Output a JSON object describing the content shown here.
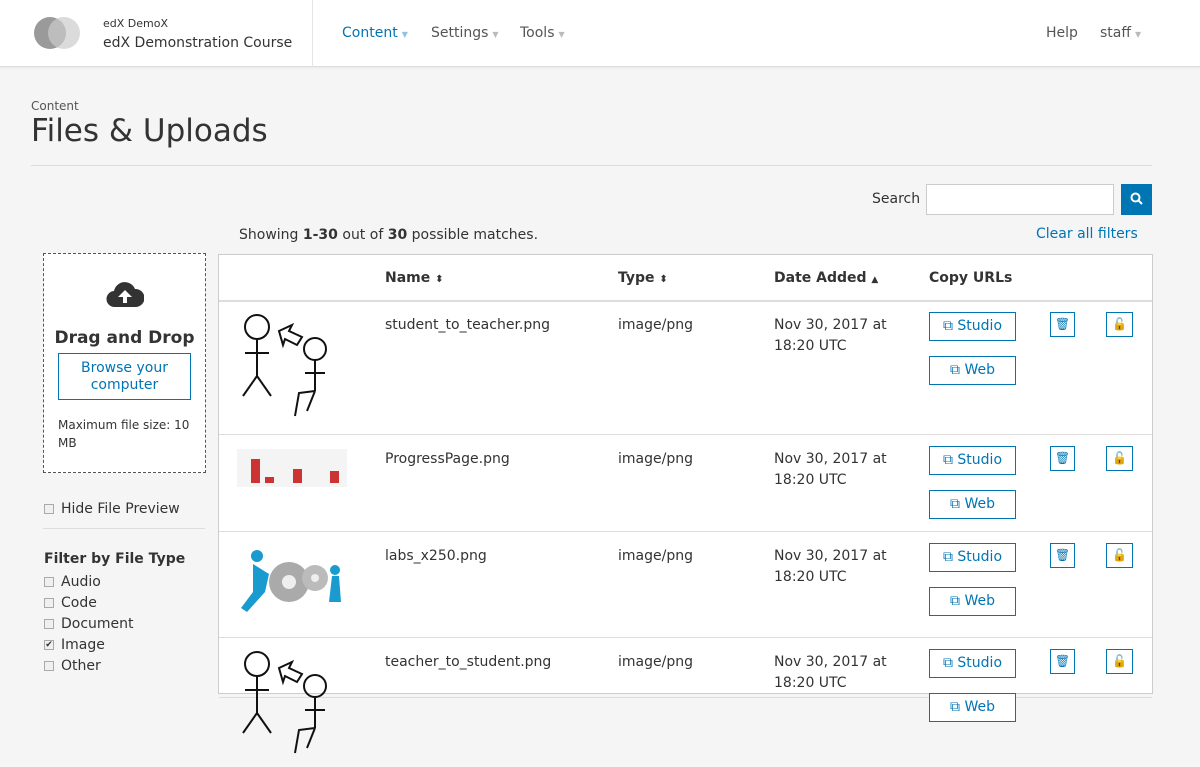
{
  "header": {
    "org": "edX DemoX",
    "course": "edX Demonstration Course",
    "nav": [
      {
        "label": "Content",
        "active": true
      },
      {
        "label": "Settings"
      },
      {
        "label": "Tools"
      }
    ],
    "help": "Help",
    "user": "staff"
  },
  "page": {
    "breadcrumb": "Content",
    "title": "Files & Uploads"
  },
  "search": {
    "label": "Search",
    "value": "",
    "placeholder": ""
  },
  "results": {
    "prefix": "Showing ",
    "range": "1-30",
    "middle": " out of ",
    "total": "30",
    "suffix": " possible matches.",
    "clear": "Clear all filters"
  },
  "upload": {
    "heading": "Drag and Drop",
    "browse": "Browse your computer",
    "max": "Maximum file size: 10 MB"
  },
  "hide_preview": {
    "label": "Hide File Preview",
    "checked": false
  },
  "filter": {
    "title": "Filter by File Type",
    "types": [
      {
        "label": "Audio",
        "checked": false
      },
      {
        "label": "Code",
        "checked": false
      },
      {
        "label": "Document",
        "checked": false
      },
      {
        "label": "Image",
        "checked": true
      },
      {
        "label": "Other",
        "checked": false
      }
    ]
  },
  "table": {
    "headers": {
      "name": "Name",
      "type": "Type",
      "date": "Date Added",
      "copy": "Copy URLs"
    },
    "studio": "Studio",
    "web": "Web",
    "rows": [
      {
        "name": "student_to_teacher.png",
        "type": "image/png",
        "date1": "Nov 30, 2017 at",
        "date2": "18:20 UTC",
        "thumb": "stick-figures"
      },
      {
        "name": "ProgressPage.png",
        "type": "image/png",
        "date1": "Nov 30, 2017 at",
        "date2": "18:20 UTC",
        "thumb": "bar-chart"
      },
      {
        "name": "labs_x250.png",
        "type": "image/png",
        "date1": "Nov 30, 2017 at",
        "date2": "18:20 UTC",
        "thumb": "gears"
      },
      {
        "name": "teacher_to_student.png",
        "type": "image/png",
        "date1": "Nov 30, 2017 at",
        "date2": "18:20 UTC",
        "thumb": "stick-figures"
      }
    ]
  },
  "colors": {
    "accent": "#0075b4"
  }
}
